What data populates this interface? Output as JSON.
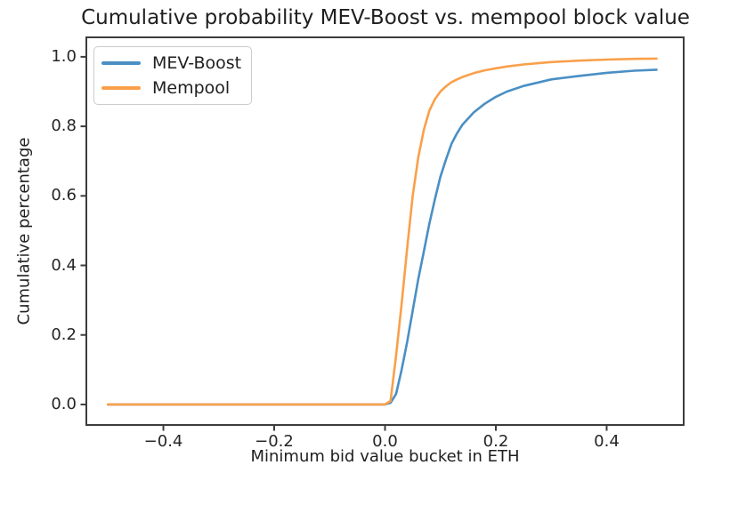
{
  "chart_data": {
    "type": "line",
    "title": "Cumulative probability MEV-Boost vs. mempool block value",
    "xlabel": "Minimum bid value bucket in ETH",
    "ylabel": "Cumulative percentage",
    "xlim": [
      -0.539,
      0.539
    ],
    "ylim": [
      -0.059,
      1.056
    ],
    "grid": false,
    "axis_color": "#3c3c3c",
    "text_color": "#1f1f1f",
    "legend": {
      "position": "upper left",
      "frame": true,
      "entries": [
        "MEV-Boost",
        "Mempool"
      ]
    },
    "x_ticks": [
      {
        "value": -0.4,
        "label": "−0.4"
      },
      {
        "value": -0.2,
        "label": "−0.2"
      },
      {
        "value": 0.0,
        "label": "0.0"
      },
      {
        "value": 0.2,
        "label": "0.2"
      },
      {
        "value": 0.4,
        "label": "0.4"
      }
    ],
    "y_ticks": [
      {
        "value": 0.0,
        "label": "0.0"
      },
      {
        "value": 0.2,
        "label": "0.2"
      },
      {
        "value": 0.4,
        "label": "0.4"
      },
      {
        "value": 0.6,
        "label": "0.6"
      },
      {
        "value": 0.8,
        "label": "0.8"
      },
      {
        "value": 1.0,
        "label": "1.0"
      }
    ],
    "series": [
      {
        "name": "MEV-Boost",
        "color": "#4a8fc4",
        "points": [
          [
            -0.5,
            0
          ],
          [
            -0.4,
            0
          ],
          [
            -0.3,
            0
          ],
          [
            -0.2,
            0
          ],
          [
            -0.1,
            0
          ],
          [
            0.0,
            0
          ],
          [
            0.01,
            0.005
          ],
          [
            0.02,
            0.03
          ],
          [
            0.03,
            0.1
          ],
          [
            0.04,
            0.18
          ],
          [
            0.05,
            0.27
          ],
          [
            0.06,
            0.36
          ],
          [
            0.07,
            0.44
          ],
          [
            0.08,
            0.52
          ],
          [
            0.09,
            0.59
          ],
          [
            0.1,
            0.655
          ],
          [
            0.11,
            0.705
          ],
          [
            0.12,
            0.75
          ],
          [
            0.13,
            0.78
          ],
          [
            0.14,
            0.805
          ],
          [
            0.16,
            0.84
          ],
          [
            0.18,
            0.865
          ],
          [
            0.2,
            0.885
          ],
          [
            0.22,
            0.9
          ],
          [
            0.25,
            0.916
          ],
          [
            0.3,
            0.935
          ],
          [
            0.35,
            0.945
          ],
          [
            0.4,
            0.954
          ],
          [
            0.45,
            0.96
          ],
          [
            0.49,
            0.963
          ]
        ]
      },
      {
        "name": "Mempool",
        "color": "#f9a04a",
        "points": [
          [
            -0.5,
            0
          ],
          [
            -0.4,
            0
          ],
          [
            -0.3,
            0
          ],
          [
            -0.2,
            0
          ],
          [
            -0.1,
            0
          ],
          [
            0.0,
            0
          ],
          [
            0.01,
            0.01
          ],
          [
            0.02,
            0.14
          ],
          [
            0.03,
            0.29
          ],
          [
            0.04,
            0.45
          ],
          [
            0.05,
            0.6
          ],
          [
            0.06,
            0.71
          ],
          [
            0.07,
            0.79
          ],
          [
            0.08,
            0.845
          ],
          [
            0.09,
            0.878
          ],
          [
            0.1,
            0.9
          ],
          [
            0.11,
            0.915
          ],
          [
            0.12,
            0.927
          ],
          [
            0.13,
            0.935
          ],
          [
            0.14,
            0.942
          ],
          [
            0.16,
            0.953
          ],
          [
            0.18,
            0.961
          ],
          [
            0.2,
            0.967
          ],
          [
            0.22,
            0.972
          ],
          [
            0.25,
            0.978
          ],
          [
            0.3,
            0.985
          ],
          [
            0.35,
            0.989
          ],
          [
            0.4,
            0.992
          ],
          [
            0.45,
            0.994
          ],
          [
            0.49,
            0.995
          ]
        ]
      }
    ]
  }
}
